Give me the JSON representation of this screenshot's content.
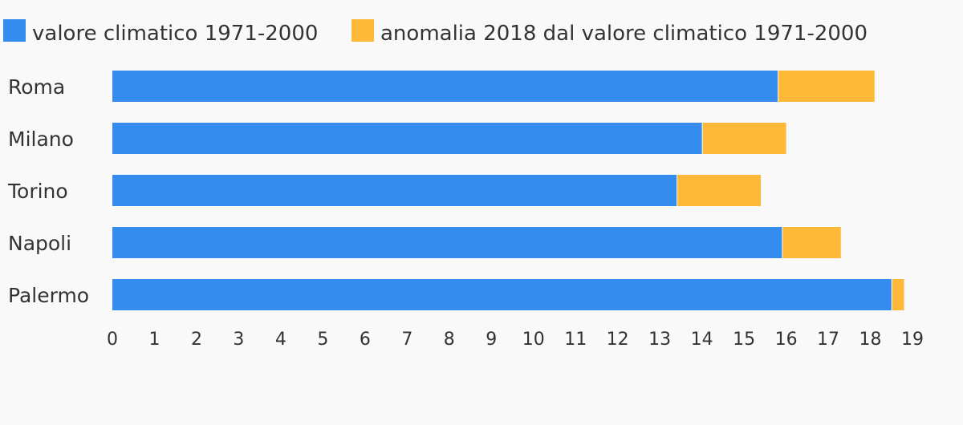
{
  "chart_data": {
    "type": "bar",
    "orientation": "horizontal",
    "stacked": true,
    "categories": [
      "Roma",
      "Milano",
      "Torino",
      "Napoli",
      "Palermo"
    ],
    "series": [
      {
        "name": "valore climatico 1971-2000",
        "color": "#338cee",
        "values": [
          15.8,
          14.0,
          13.4,
          15.9,
          18.5
        ]
      },
      {
        "name": "anomalia 2018 dal valore climatico 1971-2000",
        "color": "#ffb938",
        "values": [
          2.3,
          2.0,
          2.0,
          1.4,
          0.3
        ]
      }
    ],
    "xlim": [
      0,
      19
    ],
    "xticks": [
      "0",
      "1",
      "2",
      "3",
      "4",
      "5",
      "6",
      "7",
      "8",
      "9",
      "10",
      "11",
      "12",
      "13",
      "14",
      "15",
      "16",
      "17",
      "18",
      "19"
    ],
    "grid": false,
    "legend_position": "top-left",
    "title": "",
    "xlabel": "",
    "ylabel": ""
  }
}
